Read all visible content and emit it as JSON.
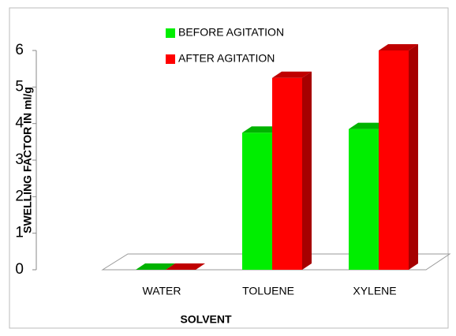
{
  "chart_data": {
    "type": "bar3d",
    "x_label": "SOLVENT",
    "y_label": "SWELLING FACTOR IN ml/g",
    "categories": [
      "WATER",
      "TOLUENE",
      "XYLENE"
    ],
    "series": [
      {
        "name": "BEFORE AGITATION",
        "color": "#00ee00",
        "values": [
          0,
          3.75,
          3.85
        ]
      },
      {
        "name": "AFTER AGITATION",
        "color": "#ff0000",
        "values": [
          0,
          5.25,
          6.0
        ]
      }
    ],
    "ylim": [
      0,
      6
    ],
    "yticks": [
      0,
      1,
      2,
      3,
      4,
      5,
      6
    ]
  }
}
